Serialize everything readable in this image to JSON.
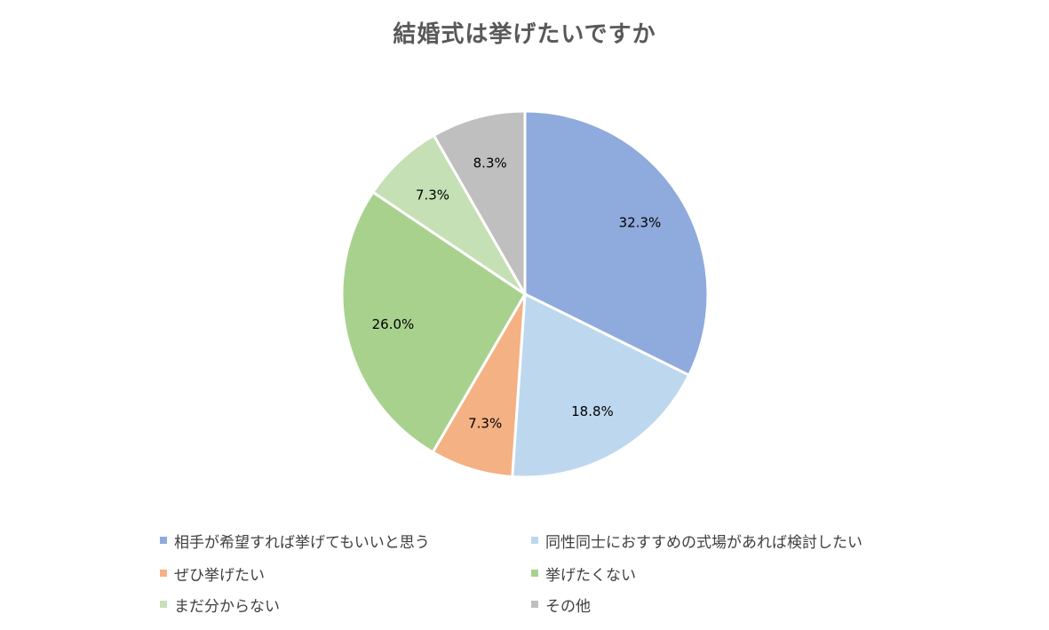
{
  "chart_data": {
    "type": "pie",
    "title": "結婚式は挙げたいですか",
    "categories": [
      "相手が希望すれば挙げてもいいと思う",
      "同性同士におすすめの式場があれば検討したい",
      "ぜひ挙げたい",
      "挙げたくない",
      "まだ分からない",
      "その他"
    ],
    "values": [
      32.3,
      18.8,
      7.3,
      26.0,
      7.3,
      8.3
    ],
    "labels": [
      "32.3%",
      "18.8%",
      "7.3%",
      "26.0%",
      "7.3%",
      "8.3%"
    ],
    "colors": [
      "#8faadc",
      "#bdd7ee",
      "#f4b183",
      "#a9d18e",
      "#c5e0b4",
      "#bfbfbf"
    ],
    "unit": "%",
    "legend": "bottom",
    "start": "12 o'clock, clockwise"
  }
}
